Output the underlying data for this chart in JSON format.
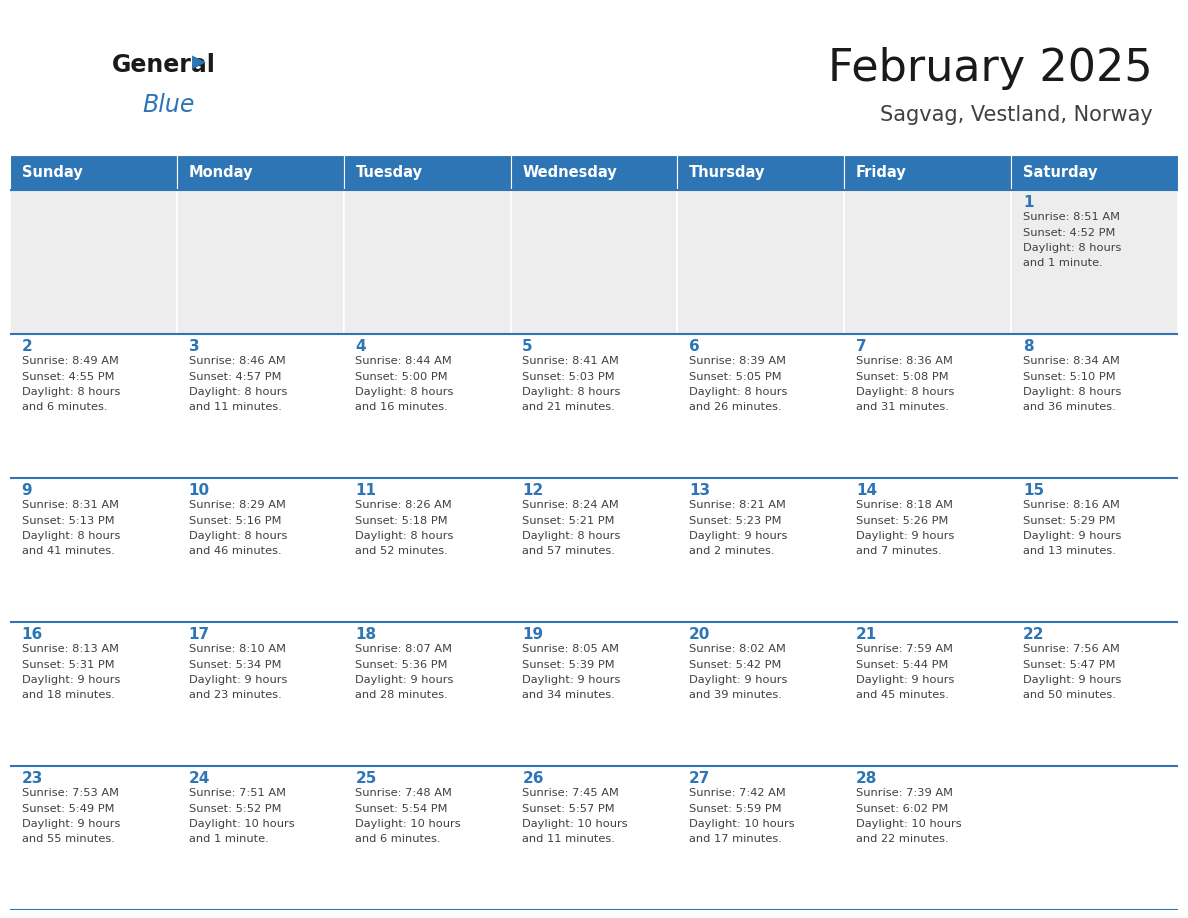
{
  "title": "February 2025",
  "subtitle": "Sagvag, Vestland, Norway",
  "days_of_week": [
    "Sunday",
    "Monday",
    "Tuesday",
    "Wednesday",
    "Thursday",
    "Friday",
    "Saturday"
  ],
  "header_bg": "#2E75B6",
  "header_text": "#FFFFFF",
  "cell_bg_white": "#FFFFFF",
  "cell_bg_gray": "#EDEDED",
  "day_number_color": "#2E75B6",
  "text_color": "#404040",
  "border_color": "#2E75B6",
  "title_color": "#1a1a1a",
  "subtitle_color": "#404040",
  "logo_general_color": "#1a1a1a",
  "logo_blue_color": "#2E75B6",
  "calendar_data": [
    [
      null,
      null,
      null,
      null,
      null,
      null,
      {
        "day": 1,
        "sunrise": "8:51 AM",
        "sunset": "4:52 PM",
        "daylight": "8 hours",
        "daylight2": "and 1 minute."
      }
    ],
    [
      {
        "day": 2,
        "sunrise": "8:49 AM",
        "sunset": "4:55 PM",
        "daylight": "8 hours",
        "daylight2": "and 6 minutes."
      },
      {
        "day": 3,
        "sunrise": "8:46 AM",
        "sunset": "4:57 PM",
        "daylight": "8 hours",
        "daylight2": "and 11 minutes."
      },
      {
        "day": 4,
        "sunrise": "8:44 AM",
        "sunset": "5:00 PM",
        "daylight": "8 hours",
        "daylight2": "and 16 minutes."
      },
      {
        "day": 5,
        "sunrise": "8:41 AM",
        "sunset": "5:03 PM",
        "daylight": "8 hours",
        "daylight2": "and 21 minutes."
      },
      {
        "day": 6,
        "sunrise": "8:39 AM",
        "sunset": "5:05 PM",
        "daylight": "8 hours",
        "daylight2": "and 26 minutes."
      },
      {
        "day": 7,
        "sunrise": "8:36 AM",
        "sunset": "5:08 PM",
        "daylight": "8 hours",
        "daylight2": "and 31 minutes."
      },
      {
        "day": 8,
        "sunrise": "8:34 AM",
        "sunset": "5:10 PM",
        "daylight": "8 hours",
        "daylight2": "and 36 minutes."
      }
    ],
    [
      {
        "day": 9,
        "sunrise": "8:31 AM",
        "sunset": "5:13 PM",
        "daylight": "8 hours",
        "daylight2": "and 41 minutes."
      },
      {
        "day": 10,
        "sunrise": "8:29 AM",
        "sunset": "5:16 PM",
        "daylight": "8 hours",
        "daylight2": "and 46 minutes."
      },
      {
        "day": 11,
        "sunrise": "8:26 AM",
        "sunset": "5:18 PM",
        "daylight": "8 hours",
        "daylight2": "and 52 minutes."
      },
      {
        "day": 12,
        "sunrise": "8:24 AM",
        "sunset": "5:21 PM",
        "daylight": "8 hours",
        "daylight2": "and 57 minutes."
      },
      {
        "day": 13,
        "sunrise": "8:21 AM",
        "sunset": "5:23 PM",
        "daylight": "9 hours",
        "daylight2": "and 2 minutes."
      },
      {
        "day": 14,
        "sunrise": "8:18 AM",
        "sunset": "5:26 PM",
        "daylight": "9 hours",
        "daylight2": "and 7 minutes."
      },
      {
        "day": 15,
        "sunrise": "8:16 AM",
        "sunset": "5:29 PM",
        "daylight": "9 hours",
        "daylight2": "and 13 minutes."
      }
    ],
    [
      {
        "day": 16,
        "sunrise": "8:13 AM",
        "sunset": "5:31 PM",
        "daylight": "9 hours",
        "daylight2": "and 18 minutes."
      },
      {
        "day": 17,
        "sunrise": "8:10 AM",
        "sunset": "5:34 PM",
        "daylight": "9 hours",
        "daylight2": "and 23 minutes."
      },
      {
        "day": 18,
        "sunrise": "8:07 AM",
        "sunset": "5:36 PM",
        "daylight": "9 hours",
        "daylight2": "and 28 minutes."
      },
      {
        "day": 19,
        "sunrise": "8:05 AM",
        "sunset": "5:39 PM",
        "daylight": "9 hours",
        "daylight2": "and 34 minutes."
      },
      {
        "day": 20,
        "sunrise": "8:02 AM",
        "sunset": "5:42 PM",
        "daylight": "9 hours",
        "daylight2": "and 39 minutes."
      },
      {
        "day": 21,
        "sunrise": "7:59 AM",
        "sunset": "5:44 PM",
        "daylight": "9 hours",
        "daylight2": "and 45 minutes."
      },
      {
        "day": 22,
        "sunrise": "7:56 AM",
        "sunset": "5:47 PM",
        "daylight": "9 hours",
        "daylight2": "and 50 minutes."
      }
    ],
    [
      {
        "day": 23,
        "sunrise": "7:53 AM",
        "sunset": "5:49 PM",
        "daylight": "9 hours",
        "daylight2": "and 55 minutes."
      },
      {
        "day": 24,
        "sunrise": "7:51 AM",
        "sunset": "5:52 PM",
        "daylight": "10 hours",
        "daylight2": "and 1 minute."
      },
      {
        "day": 25,
        "sunrise": "7:48 AM",
        "sunset": "5:54 PM",
        "daylight": "10 hours",
        "daylight2": "and 6 minutes."
      },
      {
        "day": 26,
        "sunrise": "7:45 AM",
        "sunset": "5:57 PM",
        "daylight": "10 hours",
        "daylight2": "and 11 minutes."
      },
      {
        "day": 27,
        "sunrise": "7:42 AM",
        "sunset": "5:59 PM",
        "daylight": "10 hours",
        "daylight2": "and 17 minutes."
      },
      {
        "day": 28,
        "sunrise": "7:39 AM",
        "sunset": "6:02 PM",
        "daylight": "10 hours",
        "daylight2": "and 22 minutes."
      },
      null
    ]
  ],
  "num_weeks": 5,
  "num_cols": 7,
  "fig_width": 11.88,
  "fig_height": 9.18,
  "fig_dpi": 100
}
